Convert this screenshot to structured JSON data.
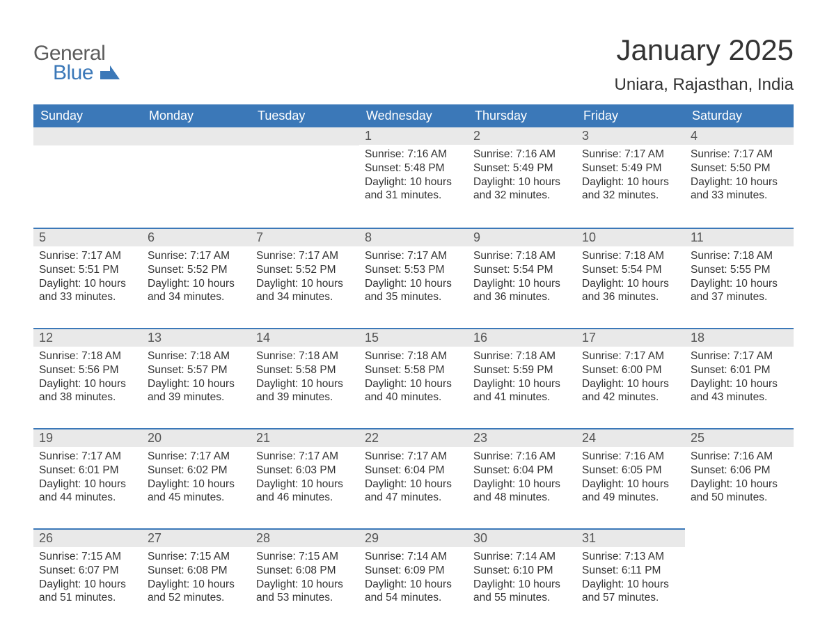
{
  "logo": {
    "top": "General",
    "bottom": "Blue",
    "mark_color": "#3b78b8",
    "text_gray": "#5c5c5c"
  },
  "title": "January 2025",
  "location": "Uniara, Rajasthan, India",
  "colors": {
    "header_bg": "#3b78b8",
    "header_text": "#ffffff",
    "daynum_bg": "#e9e9e9",
    "daynum_border": "#3b78b8",
    "body_text": "#333333",
    "daynum_text": "#555555",
    "page_bg": "#ffffff"
  },
  "typography": {
    "month_title_size_pt": 32,
    "location_size_pt": 18,
    "weekday_header_size_pt": 14,
    "daynum_size_pt": 14,
    "body_size_pt": 12,
    "font_family": "Arial"
  },
  "layout": {
    "columns": 7,
    "rows": 5,
    "aspect_ratio": "1188:918"
  },
  "weekdays": [
    "Sunday",
    "Monday",
    "Tuesday",
    "Wednesday",
    "Thursday",
    "Friday",
    "Saturday"
  ],
  "weeks": [
    [
      null,
      null,
      null,
      {
        "n": "1",
        "sr": "Sunrise: 7:16 AM",
        "ss": "Sunset: 5:48 PM",
        "d1": "Daylight: 10 hours",
        "d2": "and 31 minutes."
      },
      {
        "n": "2",
        "sr": "Sunrise: 7:16 AM",
        "ss": "Sunset: 5:49 PM",
        "d1": "Daylight: 10 hours",
        "d2": "and 32 minutes."
      },
      {
        "n": "3",
        "sr": "Sunrise: 7:17 AM",
        "ss": "Sunset: 5:49 PM",
        "d1": "Daylight: 10 hours",
        "d2": "and 32 minutes."
      },
      {
        "n": "4",
        "sr": "Sunrise: 7:17 AM",
        "ss": "Sunset: 5:50 PM",
        "d1": "Daylight: 10 hours",
        "d2": "and 33 minutes."
      }
    ],
    [
      {
        "n": "5",
        "sr": "Sunrise: 7:17 AM",
        "ss": "Sunset: 5:51 PM",
        "d1": "Daylight: 10 hours",
        "d2": "and 33 minutes."
      },
      {
        "n": "6",
        "sr": "Sunrise: 7:17 AM",
        "ss": "Sunset: 5:52 PM",
        "d1": "Daylight: 10 hours",
        "d2": "and 34 minutes."
      },
      {
        "n": "7",
        "sr": "Sunrise: 7:17 AM",
        "ss": "Sunset: 5:52 PM",
        "d1": "Daylight: 10 hours",
        "d2": "and 34 minutes."
      },
      {
        "n": "8",
        "sr": "Sunrise: 7:17 AM",
        "ss": "Sunset: 5:53 PM",
        "d1": "Daylight: 10 hours",
        "d2": "and 35 minutes."
      },
      {
        "n": "9",
        "sr": "Sunrise: 7:18 AM",
        "ss": "Sunset: 5:54 PM",
        "d1": "Daylight: 10 hours",
        "d2": "and 36 minutes."
      },
      {
        "n": "10",
        "sr": "Sunrise: 7:18 AM",
        "ss": "Sunset: 5:54 PM",
        "d1": "Daylight: 10 hours",
        "d2": "and 36 minutes."
      },
      {
        "n": "11",
        "sr": "Sunrise: 7:18 AM",
        "ss": "Sunset: 5:55 PM",
        "d1": "Daylight: 10 hours",
        "d2": "and 37 minutes."
      }
    ],
    [
      {
        "n": "12",
        "sr": "Sunrise: 7:18 AM",
        "ss": "Sunset: 5:56 PM",
        "d1": "Daylight: 10 hours",
        "d2": "and 38 minutes."
      },
      {
        "n": "13",
        "sr": "Sunrise: 7:18 AM",
        "ss": "Sunset: 5:57 PM",
        "d1": "Daylight: 10 hours",
        "d2": "and 39 minutes."
      },
      {
        "n": "14",
        "sr": "Sunrise: 7:18 AM",
        "ss": "Sunset: 5:58 PM",
        "d1": "Daylight: 10 hours",
        "d2": "and 39 minutes."
      },
      {
        "n": "15",
        "sr": "Sunrise: 7:18 AM",
        "ss": "Sunset: 5:58 PM",
        "d1": "Daylight: 10 hours",
        "d2": "and 40 minutes."
      },
      {
        "n": "16",
        "sr": "Sunrise: 7:18 AM",
        "ss": "Sunset: 5:59 PM",
        "d1": "Daylight: 10 hours",
        "d2": "and 41 minutes."
      },
      {
        "n": "17",
        "sr": "Sunrise: 7:17 AM",
        "ss": "Sunset: 6:00 PM",
        "d1": "Daylight: 10 hours",
        "d2": "and 42 minutes."
      },
      {
        "n": "18",
        "sr": "Sunrise: 7:17 AM",
        "ss": "Sunset: 6:01 PM",
        "d1": "Daylight: 10 hours",
        "d2": "and 43 minutes."
      }
    ],
    [
      {
        "n": "19",
        "sr": "Sunrise: 7:17 AM",
        "ss": "Sunset: 6:01 PM",
        "d1": "Daylight: 10 hours",
        "d2": "and 44 minutes."
      },
      {
        "n": "20",
        "sr": "Sunrise: 7:17 AM",
        "ss": "Sunset: 6:02 PM",
        "d1": "Daylight: 10 hours",
        "d2": "and 45 minutes."
      },
      {
        "n": "21",
        "sr": "Sunrise: 7:17 AM",
        "ss": "Sunset: 6:03 PM",
        "d1": "Daylight: 10 hours",
        "d2": "and 46 minutes."
      },
      {
        "n": "22",
        "sr": "Sunrise: 7:17 AM",
        "ss": "Sunset: 6:04 PM",
        "d1": "Daylight: 10 hours",
        "d2": "and 47 minutes."
      },
      {
        "n": "23",
        "sr": "Sunrise: 7:16 AM",
        "ss": "Sunset: 6:04 PM",
        "d1": "Daylight: 10 hours",
        "d2": "and 48 minutes."
      },
      {
        "n": "24",
        "sr": "Sunrise: 7:16 AM",
        "ss": "Sunset: 6:05 PM",
        "d1": "Daylight: 10 hours",
        "d2": "and 49 minutes."
      },
      {
        "n": "25",
        "sr": "Sunrise: 7:16 AM",
        "ss": "Sunset: 6:06 PM",
        "d1": "Daylight: 10 hours",
        "d2": "and 50 minutes."
      }
    ],
    [
      {
        "n": "26",
        "sr": "Sunrise: 7:15 AM",
        "ss": "Sunset: 6:07 PM",
        "d1": "Daylight: 10 hours",
        "d2": "and 51 minutes."
      },
      {
        "n": "27",
        "sr": "Sunrise: 7:15 AM",
        "ss": "Sunset: 6:08 PM",
        "d1": "Daylight: 10 hours",
        "d2": "and 52 minutes."
      },
      {
        "n": "28",
        "sr": "Sunrise: 7:15 AM",
        "ss": "Sunset: 6:08 PM",
        "d1": "Daylight: 10 hours",
        "d2": "and 53 minutes."
      },
      {
        "n": "29",
        "sr": "Sunrise: 7:14 AM",
        "ss": "Sunset: 6:09 PM",
        "d1": "Daylight: 10 hours",
        "d2": "and 54 minutes."
      },
      {
        "n": "30",
        "sr": "Sunrise: 7:14 AM",
        "ss": "Sunset: 6:10 PM",
        "d1": "Daylight: 10 hours",
        "d2": "and 55 minutes."
      },
      {
        "n": "31",
        "sr": "Sunrise: 7:13 AM",
        "ss": "Sunset: 6:11 PM",
        "d1": "Daylight: 10 hours",
        "d2": "and 57 minutes."
      },
      null
    ]
  ]
}
